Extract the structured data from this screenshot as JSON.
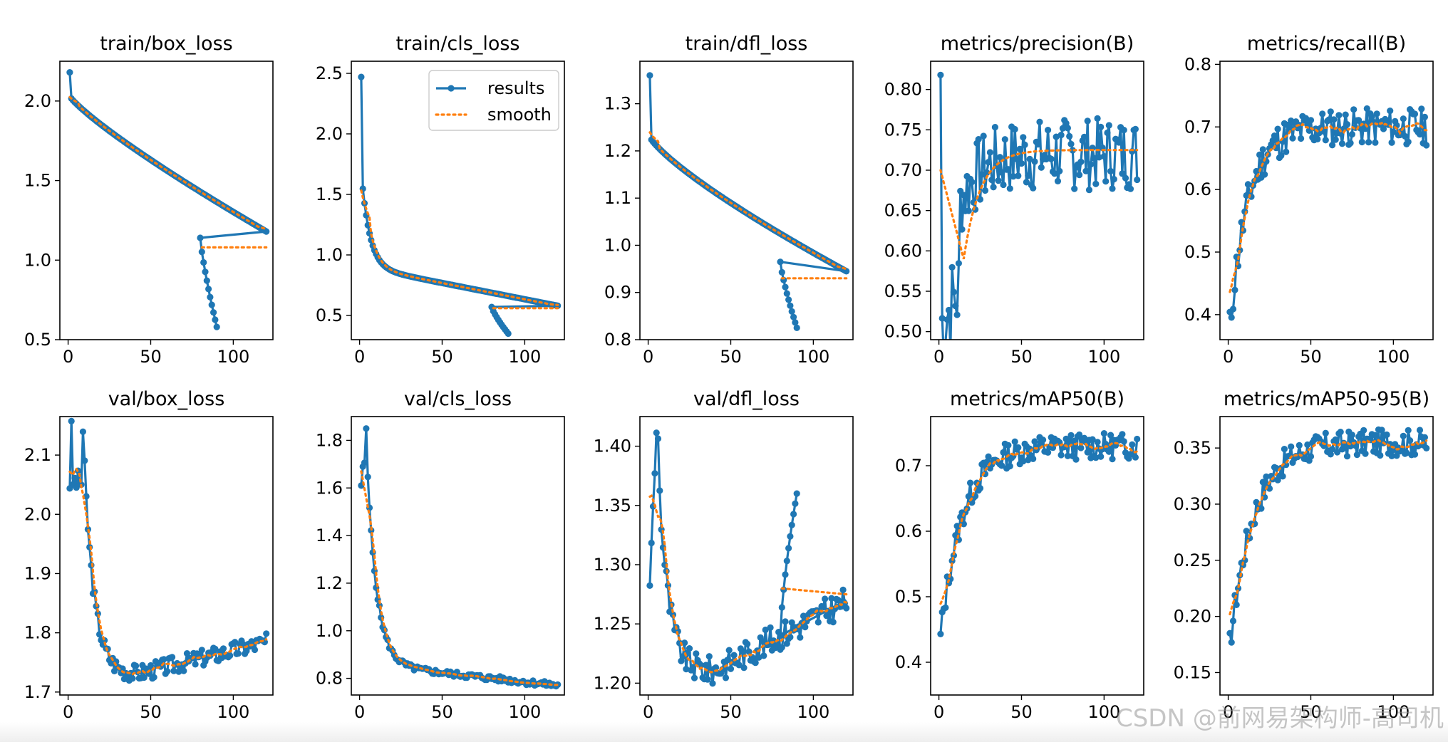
{
  "legend": {
    "results": "results",
    "smooth": "smooth"
  },
  "colors": {
    "results": "#1f77b4",
    "smooth": "#ff7f0e",
    "axis": "#000000"
  },
  "watermark": "CSDN @前网易架构师-高司机",
  "chart_data": [
    {
      "type": "line",
      "title": "train/box_loss",
      "xlim": [
        -5,
        124
      ],
      "ylim": [
        0.5,
        2.25
      ],
      "xticks": [
        0,
        50,
        100
      ],
      "yticks": [
        0.5,
        1.0,
        1.5,
        2.0
      ],
      "ytick_labels": [
        "0.5",
        "1.0",
        "1.5",
        "2.0"
      ],
      "legend": false,
      "kind": "decay",
      "start": 2.18,
      "first": 2.03,
      "end": 1.18,
      "p": 0.85,
      "drop_start": 80,
      "drop_from": 1.14,
      "drop_to": 0.58,
      "drop_n": 11,
      "smooth_start": 1.97,
      "smooth_end": 1.08
    },
    {
      "type": "line",
      "title": "train/cls_loss",
      "xlim": [
        -5,
        124
      ],
      "ylim": [
        0.3,
        2.6
      ],
      "xticks": [
        0,
        50,
        100
      ],
      "yticks": [
        0.5,
        1.0,
        1.5,
        2.0,
        2.5
      ],
      "ytick_labels": [
        "0.5",
        "1.0",
        "1.5",
        "2.0",
        "2.5"
      ],
      "legend": true,
      "legend_loc": "upper right",
      "kind": "hyper",
      "start": 2.47,
      "first": 1.55,
      "end": 0.58,
      "p": 0.35,
      "drop_start": 80,
      "drop_from": 0.57,
      "drop_to": 0.35,
      "drop_n": 11,
      "smooth_start": 1.65,
      "smooth_end": 0.56
    },
    {
      "type": "line",
      "title": "train/dfl_loss",
      "xlim": [
        -5,
        124
      ],
      "ylim": [
        0.8,
        1.39
      ],
      "xticks": [
        0,
        50,
        100
      ],
      "yticks": [
        0.8,
        0.9,
        1.0,
        1.1,
        1.2,
        1.3
      ],
      "ytick_labels": [
        "0.8",
        "0.9",
        "1.0",
        "1.1",
        "1.2",
        "1.3"
      ],
      "legend": false,
      "kind": "decay",
      "start": 1.36,
      "first": 1.23,
      "end": 0.945,
      "p": 0.8,
      "drop_start": 80,
      "drop_from": 0.965,
      "drop_to": 0.825,
      "drop_n": 11,
      "smooth_start": 1.26,
      "smooth_end": 0.93
    },
    {
      "type": "line",
      "title": "metrics/precision(B)",
      "xlim": [
        -5,
        124
      ],
      "ylim": [
        0.49,
        0.835
      ],
      "xticks": [
        0,
        50,
        100
      ],
      "yticks": [
        0.5,
        0.55,
        0.6,
        0.65,
        0.7,
        0.75,
        0.8
      ],
      "ytick_labels": [
        "0.50",
        "0.55",
        "0.60",
        "0.65",
        "0.70",
        "0.75",
        "0.80"
      ],
      "legend": false,
      "kind": "noisy_rise",
      "start": 0.818,
      "low": 0.505,
      "low_at": 6,
      "plateau": 0.72,
      "noise": 0.045,
      "seed": 7,
      "smooth_start": 0.7,
      "smooth_low": 0.59,
      "smooth_end": 0.725
    },
    {
      "type": "line",
      "title": "metrics/recall(B)",
      "xlim": [
        -5,
        124
      ],
      "ylim": [
        0.36,
        0.805
      ],
      "xticks": [
        0,
        50,
        100
      ],
      "yticks": [
        0.4,
        0.5,
        0.6,
        0.7,
        0.8
      ],
      "ytick_labels": [
        "0.4",
        "0.5",
        "0.6",
        "0.7",
        "0.8"
      ],
      "legend": false,
      "kind": "rise",
      "start": 0.38,
      "plateau": 0.7,
      "rate": 0.09,
      "noise": 0.03,
      "seed": 11,
      "smooth_start": 0.39,
      "smooth_end": 0.72
    },
    {
      "type": "line",
      "title": "val/box_loss",
      "xlim": [
        -5,
        124
      ],
      "ylim": [
        1.695,
        2.165
      ],
      "xticks": [
        0,
        50,
        100
      ],
      "yticks": [
        1.7,
        1.8,
        1.9,
        2.0,
        2.1
      ],
      "ytick_labels": [
        "1.7",
        "1.8",
        "1.9",
        "2.0",
        "2.1"
      ],
      "legend": false,
      "kind": "valley",
      "start": 1.97,
      "peak": 2.14,
      "min": 1.73,
      "min_at": 40,
      "end": 1.785,
      "noise": 0.015,
      "seed": 3,
      "smooth_start": 2.04,
      "smooth_end": 1.78
    },
    {
      "type": "line",
      "title": "val/cls_loss",
      "xlim": [
        -5,
        124
      ],
      "ylim": [
        0.73,
        1.9
      ],
      "xticks": [
        0,
        50,
        100
      ],
      "yticks": [
        0.8,
        1.0,
        1.2,
        1.4,
        1.6,
        1.8
      ],
      "ytick_labels": [
        "0.8",
        "1.0",
        "1.2",
        "1.4",
        "1.6",
        "1.8"
      ],
      "legend": false,
      "kind": "hyper_noisy",
      "start": 1.61,
      "peak": 1.85,
      "end": 0.77,
      "p": 0.5,
      "noise": 0.012,
      "seed": 5,
      "smooth_start": 1.66,
      "smooth_end": 0.77
    },
    {
      "type": "line",
      "title": "val/dfl_loss",
      "xlim": [
        -5,
        124
      ],
      "ylim": [
        1.19,
        1.425
      ],
      "xticks": [
        0,
        50,
        100
      ],
      "yticks": [
        1.2,
        1.25,
        1.3,
        1.35,
        1.4
      ],
      "ytick_labels": [
        "1.20",
        "1.25",
        "1.30",
        "1.35",
        "1.40"
      ],
      "legend": false,
      "kind": "uvalley",
      "start": 1.285,
      "peak": 1.41,
      "min": 1.21,
      "min_at": 38,
      "end": 1.27,
      "noise": 0.012,
      "seed": 9,
      "spike_start": 80,
      "spike_to": 1.36,
      "smooth_start": 1.36,
      "smooth_end": 1.275
    },
    {
      "type": "line",
      "title": "metrics/mAP50(B)",
      "xlim": [
        -5,
        124
      ],
      "ylim": [
        0.35,
        0.775
      ],
      "xticks": [
        0,
        50,
        100
      ],
      "yticks": [
        0.4,
        0.5,
        0.6,
        0.7
      ],
      "ytick_labels": [
        "0.4",
        "0.5",
        "0.6",
        "0.7"
      ],
      "legend": false,
      "kind": "rise",
      "start": 0.44,
      "plateau": 0.73,
      "rate": 0.075,
      "noise": 0.02,
      "seed": 13,
      "smooth_start": 0.45,
      "smooth_end": 0.73
    },
    {
      "type": "line",
      "title": "metrics/mAP50-95(B)",
      "xlim": [
        -5,
        124
      ],
      "ylim": [
        0.13,
        0.378
      ],
      "xticks": [
        0,
        50,
        100
      ],
      "yticks": [
        0.15,
        0.2,
        0.25,
        0.3,
        0.35
      ],
      "ytick_labels": [
        "0.15",
        "0.20",
        "0.25",
        "0.30",
        "0.35"
      ],
      "legend": false,
      "kind": "rise",
      "start": 0.175,
      "plateau": 0.355,
      "rate": 0.07,
      "noise": 0.012,
      "seed": 17,
      "smooth_start": 0.175,
      "smooth_end": 0.355
    }
  ]
}
